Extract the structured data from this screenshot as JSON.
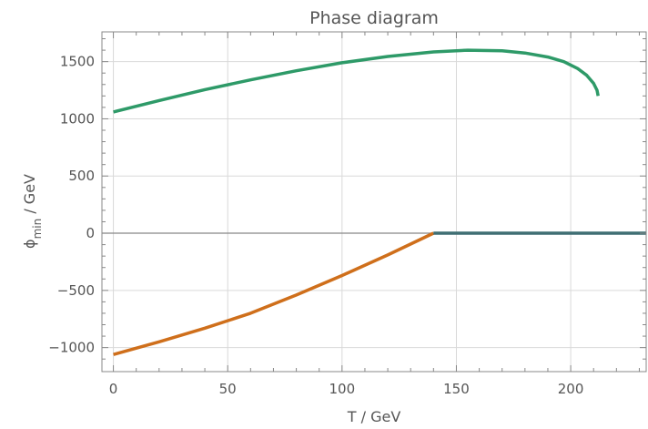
{
  "chart_data": {
    "type": "line",
    "title": "Phase diagram",
    "xlabel": "T / GeV",
    "ylabel_main": "ϕ",
    "ylabel_sub": "min",
    "ylabel_rest": " / GeV",
    "xlim": [
      -5,
      233
    ],
    "ylim": [
      -1210,
      1760
    ],
    "grid": true,
    "x_ticks": [
      0,
      50,
      100,
      150,
      200
    ],
    "y_ticks": [
      -1000,
      -500,
      0,
      500,
      1000,
      1500
    ],
    "y_tick_labels": [
      "−1000",
      "−500",
      "0",
      "500",
      "1000",
      "1500"
    ],
    "series": [
      {
        "color": "#2e9a68",
        "x": [
          0,
          20,
          40,
          60,
          80,
          100,
          120,
          140,
          155,
          170,
          180,
          190,
          197,
          203,
          207,
          210,
          211.5,
          212
        ],
        "y": [
          1060,
          1160,
          1255,
          1340,
          1420,
          1490,
          1545,
          1585,
          1600,
          1595,
          1575,
          1540,
          1500,
          1440,
          1380,
          1310,
          1250,
          1200
        ]
      },
      {
        "color": "#cf6f1b",
        "x": [
          0,
          20,
          40,
          60,
          80,
          100,
          120,
          140
        ],
        "y": [
          -1060,
          -950,
          -830,
          -700,
          -540,
          -370,
          -190,
          0
        ]
      },
      {
        "color": "#3f6e73",
        "x": [
          140,
          233
        ],
        "y": [
          0,
          0
        ]
      }
    ]
  }
}
